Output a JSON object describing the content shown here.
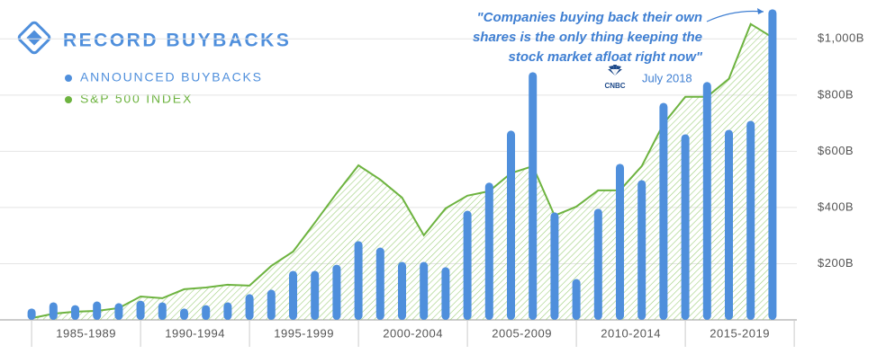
{
  "chart_data": {
    "type": "bar_line",
    "title": "RECORD BUYBACKS",
    "categories": [
      null,
      null,
      null,
      null,
      null,
      null,
      null,
      null,
      null,
      null,
      null,
      null,
      null,
      null,
      null,
      null,
      null,
      null,
      null,
      null,
      null,
      null,
      null,
      null,
      null,
      null,
      null,
      null,
      null,
      null,
      null,
      null,
      null,
      null,
      null
    ],
    "groups": [
      "1985-1989",
      "1990-1994",
      "1995-1999",
      "2000-2004",
      "2005-2009",
      "2010-2014",
      "2015-2019"
    ],
    "series": [
      {
        "name": "ANNOUNCED BUYBACKS",
        "color": "#4f8fdc",
        "type": "bar",
        "values": [
          26,
          48,
          38,
          51,
          45,
          54,
          48,
          26,
          38,
          48,
          77,
          93,
          160,
          160,
          182,
          266,
          243,
          192,
          192,
          173,
          374,
          474,
          659,
          867,
          368,
          131,
          381,
          541,
          483,
          758,
          646,
          832,
          662,
          694,
          1091
        ]
      },
      {
        "name": "S&P 500 INDEX",
        "color": "#6db33f",
        "type": "line",
        "values": [
          6,
          22,
          29,
          32,
          42,
          83,
          77,
          109,
          115,
          125,
          122,
          192,
          243,
          346,
          451,
          550,
          499,
          435,
          301,
          397,
          442,
          458,
          522,
          547,
          371,
          403,
          461,
          461,
          547,
          698,
          794,
          794,
          858,
          1053,
          1005
        ]
      }
    ],
    "ylim": [
      0,
      1100
    ],
    "yticks": [
      {
        "value": 200,
        "label": "$200B"
      },
      {
        "value": 400,
        "label": "$400B"
      },
      {
        "value": 600,
        "label": "$600B"
      },
      {
        "value": 800,
        "label": "$800B"
      },
      {
        "value": 1000,
        "label": "$1,000B"
      }
    ],
    "grid": true,
    "annotation": {
      "quote": [
        "\"Companies buying back their own",
        "shares is the only thing keeping the",
        "stock market afloat right now\""
      ],
      "source": "CNBC",
      "date": "July 2018"
    }
  }
}
